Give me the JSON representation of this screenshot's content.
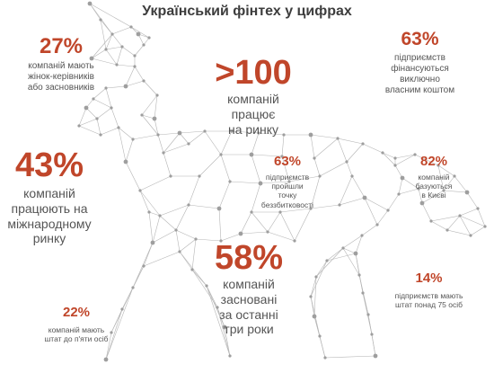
{
  "title": "Український фінтех у цифрах",
  "colors": {
    "accent": "#c0462a",
    "network": "#b5b5b5",
    "node": "#9e9e9e",
    "text": "#555555"
  },
  "stats": [
    {
      "value": "27%",
      "lines": [
        "компаній мають",
        "жінок-керівників",
        "або засновників"
      ]
    },
    {
      "value": ">100",
      "lines": [
        "компаній",
        "працює",
        "на ринку"
      ]
    },
    {
      "value": "63%",
      "lines": [
        "підприємств",
        "фінансуються",
        "виключно",
        "власним коштом"
      ]
    },
    {
      "value": "43%",
      "lines": [
        "компаній",
        "працюють на",
        "міжнародному",
        "ринку"
      ]
    },
    {
      "value": "63%",
      "lines": [
        "підприємств",
        "пройшли",
        "точку",
        "беззбитковості"
      ]
    },
    {
      "value": "82%",
      "lines": [
        "компаній",
        "базуються",
        "в Києві"
      ]
    },
    {
      "value": "58%",
      "lines": [
        "компаній",
        "засновані",
        "за останні",
        "три роки"
      ]
    },
    {
      "value": "14%",
      "lines": [
        "підприємств мають",
        "штат понад 75 осіб"
      ]
    },
    {
      "value": "22%",
      "lines": [
        "компаній мають",
        "штат до п'яти осіб"
      ]
    }
  ]
}
